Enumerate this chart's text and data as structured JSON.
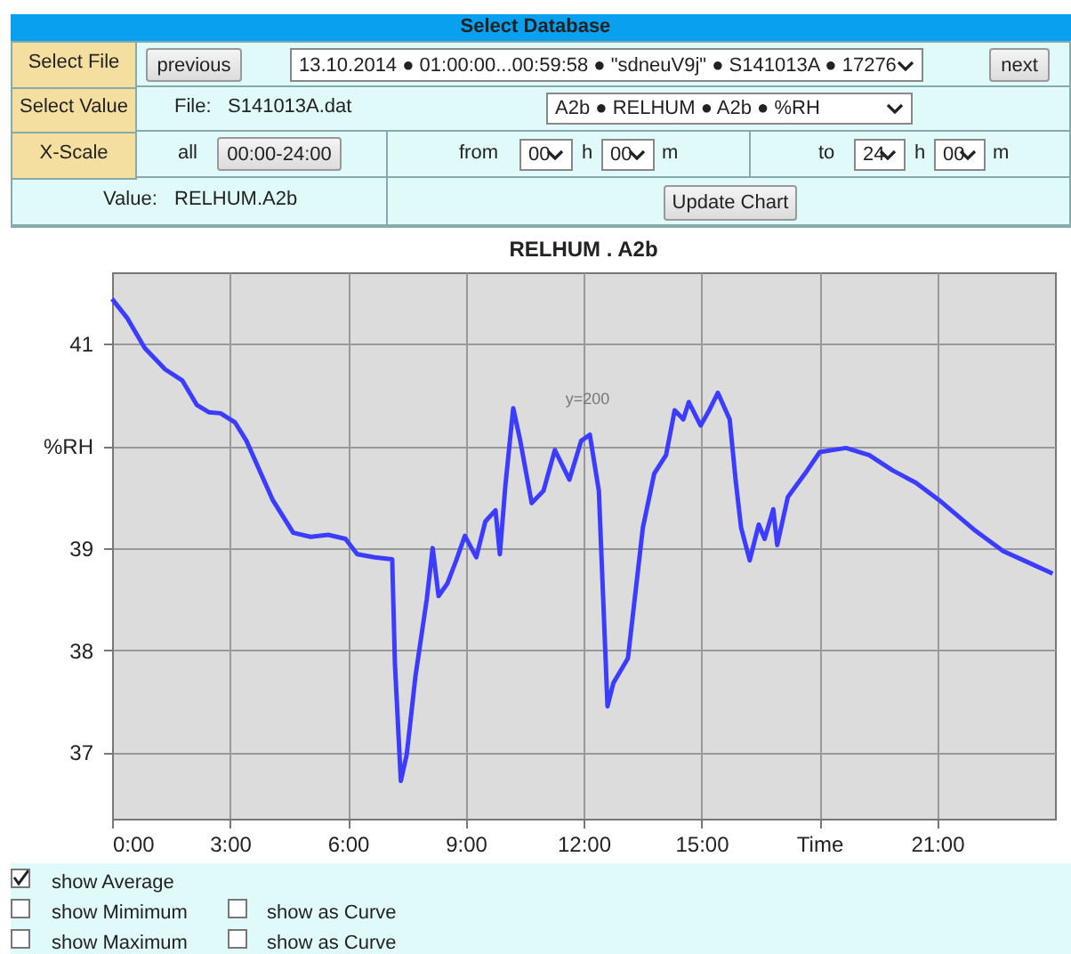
{
  "chart_data": {
    "type": "line",
    "title": "RELHUM . A2b",
    "x": [
      0,
      0.39,
      0.83,
      1.35,
      1.79,
      2.16,
      2.46,
      2.76,
      3.13,
      3.42,
      3.72,
      4.09,
      4.61,
      5.05,
      5.5,
      5.94,
      6.24,
      6.68,
      7.13,
      7.2,
      7.35,
      7.5,
      7.72,
      8.01,
      8.16,
      8.31,
      8.53,
      8.76,
      8.98,
      9.27,
      9.5,
      9.76,
      9.87,
      10.01,
      10.21,
      10.39,
      10.68,
      10.98,
      11.27,
      11.64,
      11.94,
      12.16,
      12.39,
      12.61,
      12.76,
      13.13,
      13.51,
      13.8,
      14.1,
      14.32,
      14.54,
      14.68,
      14.98,
      15.2,
      15.42,
      15.72,
      15.87,
      16.01,
      16.23,
      16.46,
      16.61,
      16.83,
      16.93,
      17.2,
      17.64,
      18.01,
      18.68,
      19.27,
      19.87,
      20.46,
      21.05,
      21.94,
      22.68,
      23.2,
      23.94
    ],
    "series": [
      {
        "color": "#3c3cff",
        "values": [
          41.44,
          41.25,
          40.96,
          40.75,
          40.64,
          40.4,
          40.33,
          40.32,
          40.23,
          40.05,
          39.79,
          39.47,
          39.15,
          39.11,
          39.13,
          39.09,
          38.94,
          38.91,
          38.89,
          37.86,
          36.72,
          36.98,
          37.74,
          38.5,
          39.0,
          38.53,
          38.65,
          38.88,
          39.12,
          38.91,
          39.26,
          39.37,
          38.94,
          39.61,
          40.37,
          40.05,
          39.44,
          39.56,
          39.96,
          39.67,
          40.05,
          40.11,
          39.56,
          37.45,
          37.68,
          37.92,
          39.2,
          39.73,
          39.91,
          40.35,
          40.26,
          40.43,
          40.2,
          40.35,
          40.52,
          40.26,
          39.67,
          39.2,
          38.88,
          39.23,
          39.09,
          39.38,
          39.03,
          39.5,
          39.73,
          39.94,
          39.98,
          39.91,
          39.76,
          39.64,
          39.47,
          39.18,
          38.97,
          38.88,
          38.75
        ]
      }
    ],
    "xlim": [
      0,
      24
    ],
    "ylim": [
      36.35,
      41.7
    ],
    "xticks": [
      {
        "value": 0,
        "label": "0:00"
      },
      {
        "value": 3,
        "label": "3:00"
      },
      {
        "value": 6,
        "label": "6:00"
      },
      {
        "value": 9,
        "label": "9:00"
      },
      {
        "value": 12,
        "label": "12:00"
      },
      {
        "value": 15,
        "label": "15:00"
      },
      {
        "value": 18,
        "label": "Time"
      },
      {
        "value": 21,
        "label": "21:00"
      }
    ],
    "yticks": [
      37,
      38,
      39,
      {
        "value": 40,
        "label": "%RH"
      },
      41
    ],
    "grid": true,
    "marker": "none",
    "line_style": "solid",
    "annotations": [
      "Select Database",
      "Select File",
      "previous",
      "13.10.2014 ● 01:00:00...00:59:58 ● \"sdneuV9j\" ● S141013A ● 17276",
      "next",
      "Select Value",
      "File:",
      "S141013A.dat",
      "A2b ● RELHUM ● A2b ● %RH",
      "X-Scale",
      "all",
      "00:00-24:00",
      "from",
      "00",
      "h",
      "00",
      "m",
      "to",
      "24",
      "h",
      "00",
      "m",
      "Value:",
      "RELHUM.A2b",
      "Update Chart",
      "show Average",
      "show Mimimum",
      "show as Curve",
      "show Maximum",
      "show as Curve",
      {
        "text": "y=200",
        "x": 12.1,
        "y": 40.1
      }
    ]
  }
}
